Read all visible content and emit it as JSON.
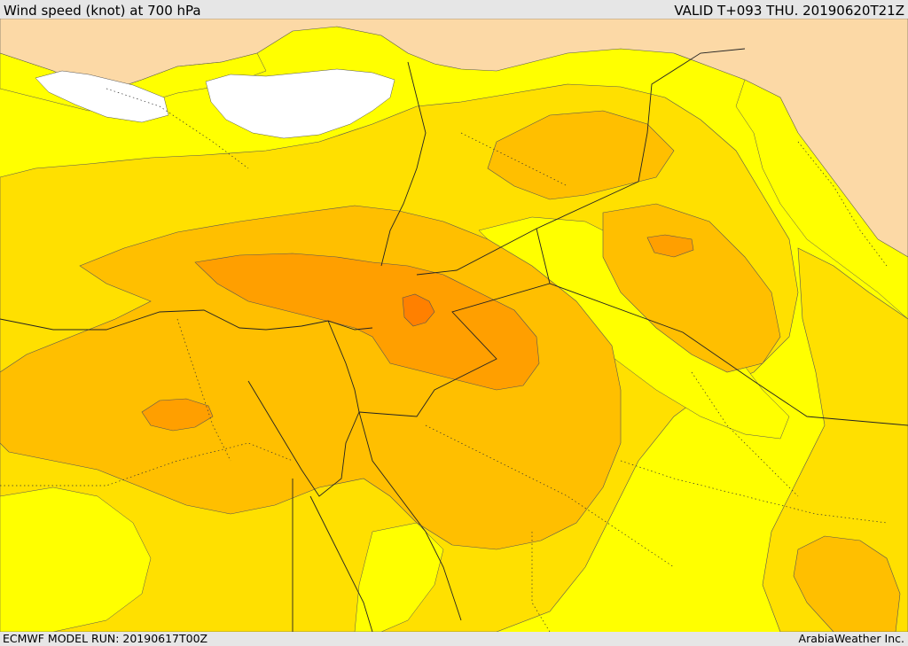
{
  "header": {
    "title": "Wind speed (knot) at 700 hPa",
    "valid": "VALID T+093 THU. 20190620T21Z"
  },
  "footer": {
    "model_run": "ECMWF MODEL RUN: 20190617T00Z",
    "credit": "ArabiaWeather Inc."
  },
  "map": {
    "fill_colors": {
      "land_low": "#fcd9a6",
      "sea_calm": "#ffffff",
      "band_1": "#ffff00",
      "band_2": "#ffe000",
      "band_3": "#ffbf00",
      "band_4": "#ff9f00",
      "band_5": "#ff8000"
    }
  }
}
